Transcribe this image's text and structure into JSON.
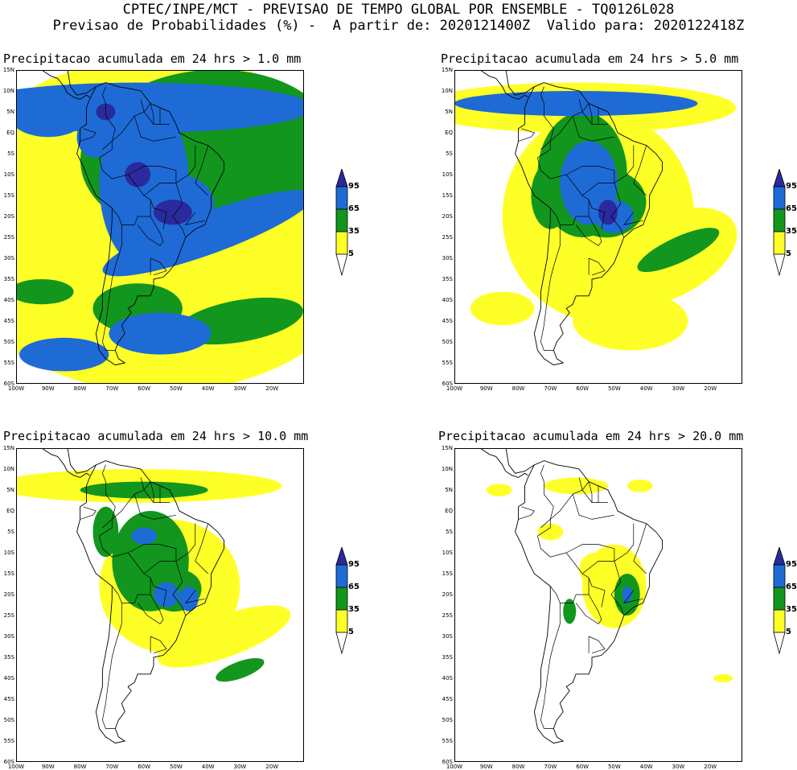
{
  "header": {
    "line1": "CPTEC/INPE/MCT - PREVISAO DE TEMPO GLOBAL POR ENSEMBLE - TQ0126L028",
    "line2": "Previsao de Probabilidades (%) -  A partir de: 2020121400Z  Valido para: 2020122418Z"
  },
  "panels": [
    {
      "title": "Precipitacao acumulada em 24 hrs > 1.0 mm"
    },
    {
      "title": "Precipitacao acumulada em 24 hrs > 5.0 mm"
    },
    {
      "title": "Precipitacao acumulada em 24 hrs > 10.0 mm"
    },
    {
      "title": "Precipitacao acumulada em 24 hrs > 20.0 mm"
    }
  ],
  "axes": {
    "lat_labels": [
      "15N",
      "10N",
      "5N",
      "EQ",
      "5S",
      "10S",
      "15S",
      "20S",
      "25S",
      "30S",
      "35S",
      "40S",
      "45S",
      "50S",
      "55S",
      "60S"
    ],
    "lon_labels": [
      "100W",
      "90W",
      "80W",
      "70W",
      "60W",
      "50W",
      "40W",
      "30W",
      "20W"
    ]
  },
  "colorbar": {
    "levels": [
      "95",
      "65",
      "35",
      "5"
    ],
    "colors": {
      "c95": "#2a2a9e",
      "c65": "#1e6bd6",
      "c35": "#12961e",
      "c5": "#ffff28"
    }
  }
}
